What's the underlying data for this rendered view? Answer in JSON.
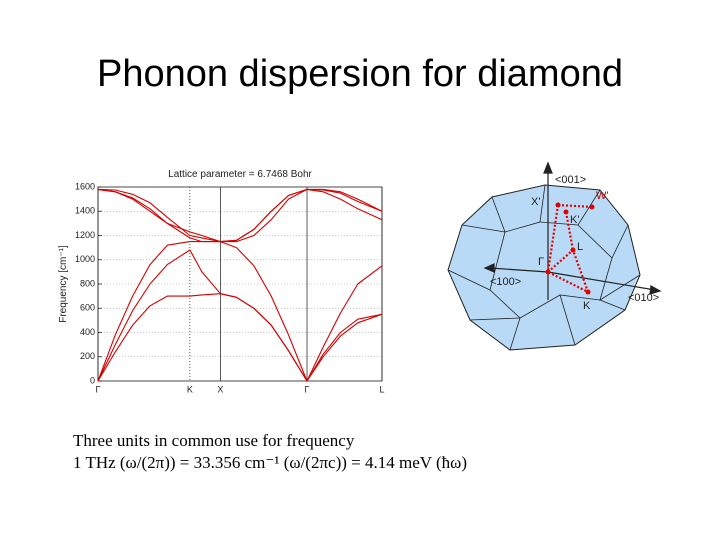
{
  "slide": {
    "title": "Phonon dispersion for diamond"
  },
  "chart_data": {
    "type": "line",
    "title": "Lattice parameter = 6.7468 Bohr",
    "y_label": "Frequency [cm⁻¹]",
    "x": [
      0,
      0.2,
      0.4,
      0.6,
      0.8,
      1.061,
      1.2,
      1.414,
      1.6,
      1.8,
      2.0,
      2.2,
      2.414,
      2.6,
      2.8,
      3.0,
      3.28
    ],
    "xlim": [
      0,
      3.28
    ],
    "xticks": [
      {
        "value": 0,
        "label": "Γ"
      },
      {
        "value": 1.061,
        "label": "K"
      },
      {
        "value": 1.414,
        "label": "X"
      },
      {
        "value": 2.414,
        "label": "Γ"
      },
      {
        "value": 3.28,
        "label": "L"
      }
    ],
    "ylim": [
      0,
      1600
    ],
    "yticks": [
      0,
      200,
      400,
      600,
      800,
      1000,
      1200,
      1400,
      1600
    ],
    "grid": true,
    "series": [
      {
        "color": "#d40000",
        "values": [
          0,
          240,
          460,
          620,
          700,
          700,
          710,
          720,
          690,
          600,
          460,
          250,
          0,
          200,
          370,
          480,
          550
        ]
      },
      {
        "color": "#d40000",
        "values": [
          0,
          300,
          580,
          800,
          960,
          1080,
          900,
          720,
          690,
          600,
          460,
          250,
          0,
          220,
          400,
          510,
          550
        ]
      },
      {
        "color": "#d40000",
        "values": [
          0,
          380,
          700,
          960,
          1120,
          1150,
          1150,
          1150,
          1100,
          950,
          700,
          380,
          0,
          280,
          560,
          800,
          950
        ]
      },
      {
        "color": "#d40000",
        "values": [
          1580,
          1560,
          1500,
          1400,
          1300,
          1230,
          1200,
          1150,
          1160,
          1250,
          1400,
          1530,
          1580,
          1560,
          1500,
          1420,
          1330
        ]
      },
      {
        "color": "#d40000",
        "values": [
          1580,
          1575,
          1540,
          1470,
          1350,
          1200,
          1180,
          1150,
          1150,
          1200,
          1330,
          1500,
          1580,
          1580,
          1560,
          1500,
          1400
        ]
      },
      {
        "color": "#d40000",
        "values": [
          1580,
          1560,
          1510,
          1420,
          1300,
          1180,
          1150,
          1150,
          1160,
          1250,
          1400,
          1530,
          1580,
          1575,
          1550,
          1480,
          1400
        ]
      }
    ]
  },
  "diagram": {
    "labels": [
      "<001>",
      "W'",
      "X'",
      "K'",
      "L",
      "Γ",
      "<100>",
      "K",
      "<010>"
    ]
  },
  "notes": [
    "Three units in common use for frequency",
    "1 THz (ω/(2π)) = 33.356 cm⁻¹ (ω/(2πc)) = 4.14 meV (ħω)"
  ]
}
